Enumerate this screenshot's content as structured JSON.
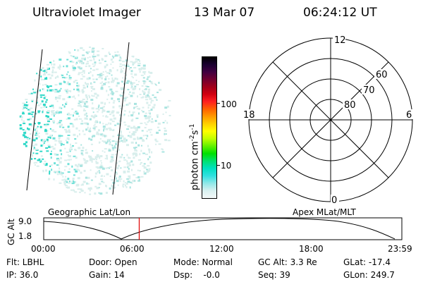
{
  "header": {
    "title": "Ultraviolet Imager",
    "date": "13 Mar 07",
    "time": "06:24:12 UT"
  },
  "colorbar": {
    "label_main": "photon cm",
    "label_sup1": "-2",
    "label_mid": "s",
    "label_sup2": "-1",
    "ticks": [
      "100",
      "10"
    ],
    "colors": [
      "#000000",
      "#1a0030",
      "#400040",
      "#700030",
      "#a0001a",
      "#d00010",
      "#ff2020",
      "#ff6000",
      "#ff9a00",
      "#ffd000",
      "#ffff00",
      "#c0ff00",
      "#60f000",
      "#00e000",
      "#00e070",
      "#00e0c0",
      "#30e0e0",
      "#90e8e8",
      "#d8f0f0",
      "#f4f8f8"
    ]
  },
  "polar": {
    "mlt_labels": {
      "top": "12",
      "left": "18",
      "right": "6",
      "bottom": "0"
    },
    "lat_labels": [
      "60",
      "70",
      "80"
    ]
  },
  "timeline": {
    "left_title": "Geographic Lat/Lon",
    "right_title": "Apex MLat/MLT",
    "ylabel": "GC Alt",
    "y_ticks": [
      "9.0",
      "1.8"
    ],
    "x_ticks": [
      "00:00",
      "06:00",
      "12:00",
      "18:00",
      "23:59"
    ],
    "current_time_hours": 6.4,
    "marker_color": "#e00000"
  },
  "footer": {
    "col1": [
      "Flt: LBHL",
      "IP: 36.0"
    ],
    "col2": [
      "Door: Open",
      "Gain: 14"
    ],
    "col3": [
      "Mode: Normal",
      "Dsp:    -0.0"
    ],
    "col4": [
      "GC Alt: 3.3 Re",
      "Seq: 39"
    ],
    "col5": [
      "GLat: -17.4",
      "GLon: 249.7"
    ]
  }
}
